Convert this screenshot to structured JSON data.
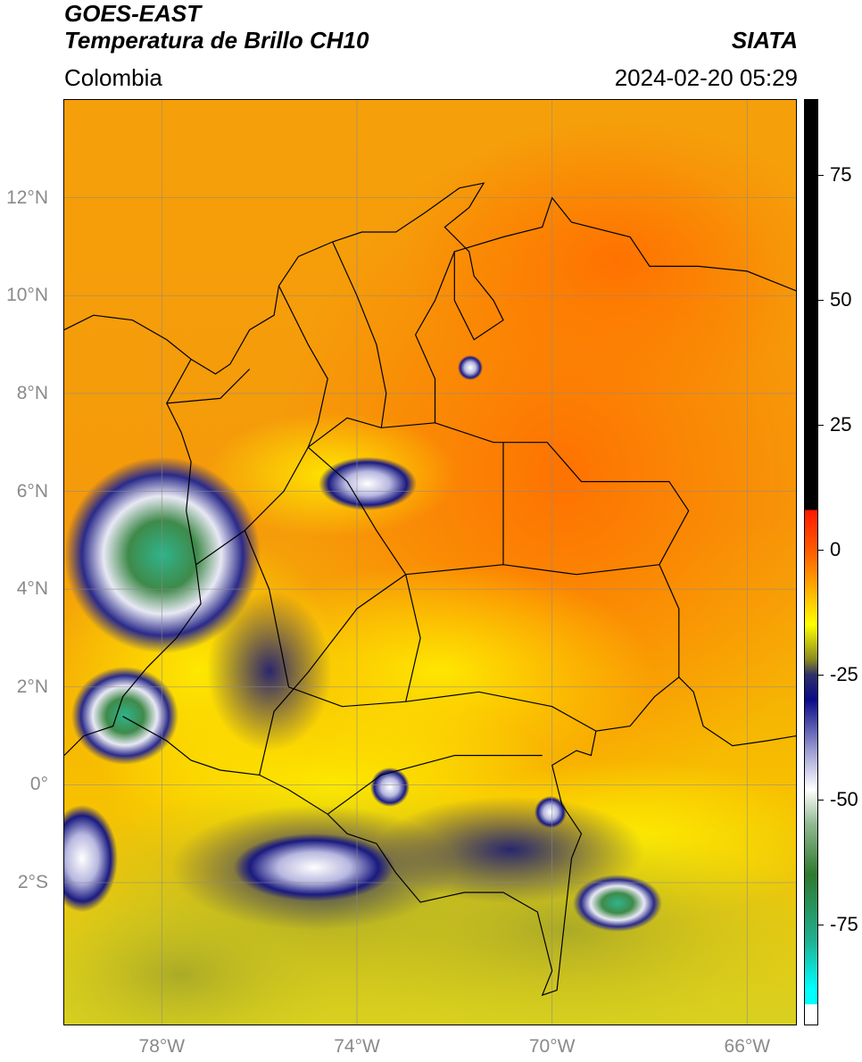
{
  "header": {
    "title_line1": "GOES-EAST",
    "title_line2": "Temperatura de Brillo CH10",
    "source": "SIATA",
    "region": "Colombia",
    "datetime": "2024-02-20 05:29"
  },
  "map": {
    "extent": {
      "lon_min": -80,
      "lon_max": -65,
      "lat_min": -4.9,
      "lat_max": 14
    },
    "lat_labels": [
      {
        "lat": 12,
        "text": "12°N"
      },
      {
        "lat": 10,
        "text": "10°N"
      },
      {
        "lat": 8,
        "text": "8°N"
      },
      {
        "lat": 6,
        "text": "6°N"
      },
      {
        "lat": 4,
        "text": "4°N"
      },
      {
        "lat": 2,
        "text": "2°N"
      },
      {
        "lat": 0,
        "text": "0°"
      },
      {
        "lat": -2,
        "text": "2°S"
      }
    ],
    "lon_labels": [
      {
        "lon": -78,
        "text": "78°W"
      },
      {
        "lon": -74,
        "text": "74°W"
      },
      {
        "lon": -70,
        "text": "70°W"
      },
      {
        "lon": -66,
        "text": "66°W"
      }
    ],
    "background_color": "#f59a0a",
    "colors": {
      "warm": "#ff7a00",
      "orange": "#f59a0a",
      "yellow": "#ffee00",
      "olive": "#b8b826",
      "navy": "#14147a",
      "white": "#f2f2f8",
      "green": "#3f9a5a",
      "teal": "#23c8a0"
    }
  },
  "colorbar": {
    "range": [
      -95,
      90
    ],
    "ticks": [
      {
        "value": 75,
        "text": "75"
      },
      {
        "value": 50,
        "text": "50"
      },
      {
        "value": 25,
        "text": "25"
      },
      {
        "value": 0,
        "text": "0"
      },
      {
        "value": -25,
        "text": "-25"
      },
      {
        "value": -50,
        "text": "-50"
      },
      {
        "value": -75,
        "text": "-75"
      }
    ],
    "stops": [
      {
        "value": 90,
        "color": "#000000"
      },
      {
        "value": 8,
        "color": "#000000"
      },
      {
        "value": 7.9,
        "color": "#ff1a00"
      },
      {
        "value": 0,
        "color": "#ff5a00"
      },
      {
        "value": -8,
        "color": "#ffb000"
      },
      {
        "value": -15,
        "color": "#ffff00"
      },
      {
        "value": -22,
        "color": "#8a8a20"
      },
      {
        "value": -25,
        "color": "#30306a"
      },
      {
        "value": -30,
        "color": "#0a0a8a"
      },
      {
        "value": -40,
        "color": "#9a9ad2"
      },
      {
        "value": -48,
        "color": "#ffffff"
      },
      {
        "value": -55,
        "color": "#90b890"
      },
      {
        "value": -65,
        "color": "#2e7a2e"
      },
      {
        "value": -78,
        "color": "#20b090"
      },
      {
        "value": -88,
        "color": "#00ffff"
      },
      {
        "value": -90.9,
        "color": "#00ffff"
      },
      {
        "value": -91,
        "color": "#ffffff"
      },
      {
        "value": -95,
        "color": "#ffffff"
      }
    ]
  }
}
